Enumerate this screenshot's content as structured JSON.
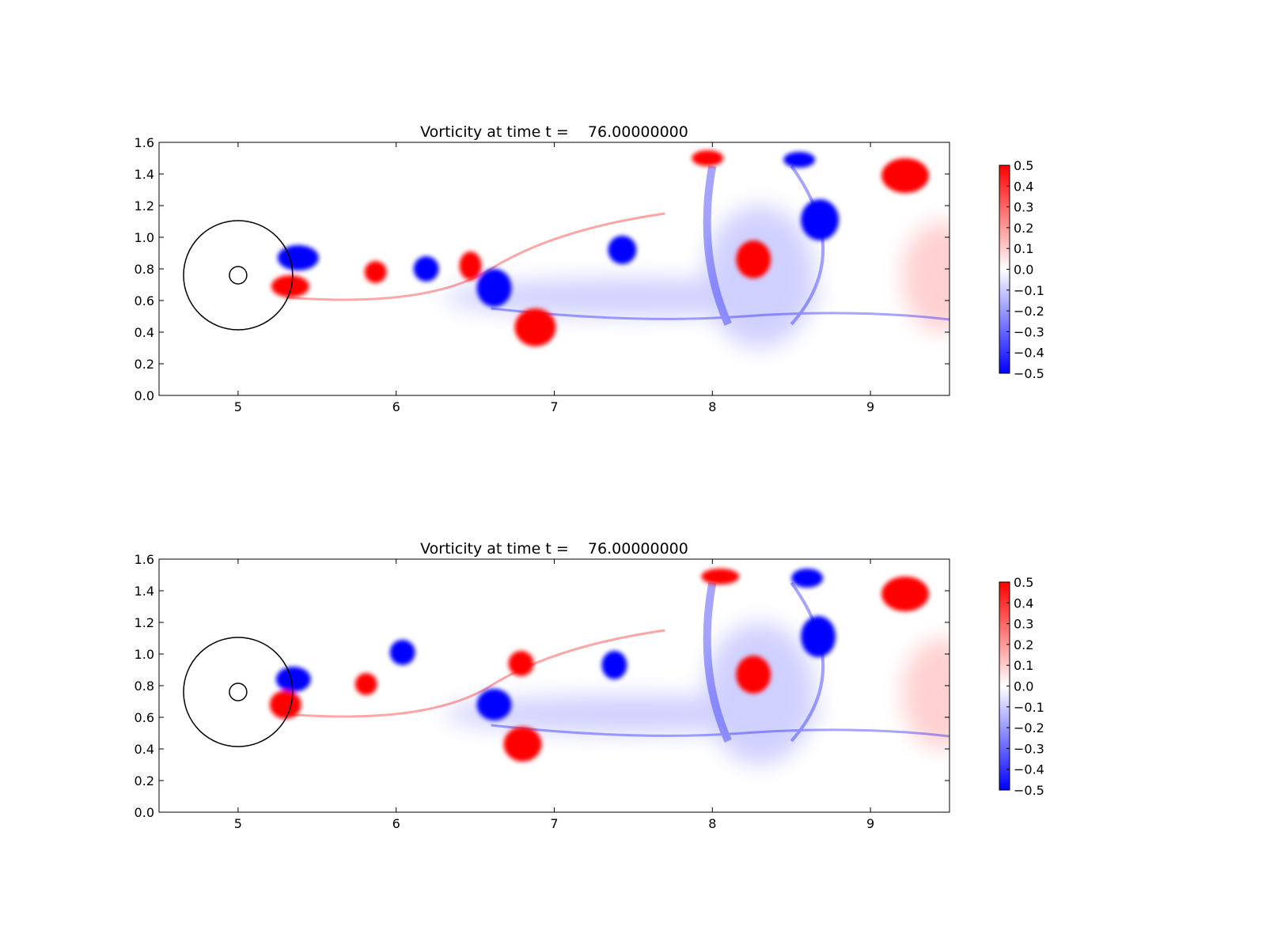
{
  "chart_data": [
    {
      "type": "heatmap",
      "title": "Vorticity at time t =    76.00000000",
      "xlabel": "",
      "ylabel": "",
      "xlim": [
        4.5,
        9.5
      ],
      "ylim": [
        0.0,
        1.6
      ],
      "x_ticks": [
        "5",
        "6",
        "7",
        "8",
        "9"
      ],
      "x_tick_values": [
        5,
        6,
        7,
        8,
        9
      ],
      "y_ticks": [
        "0.0",
        "0.2",
        "0.4",
        "0.6",
        "0.8",
        "1.0",
        "1.2",
        "1.4",
        "1.6"
      ],
      "y_tick_values": [
        0.0,
        0.2,
        0.4,
        0.6,
        0.8,
        1.0,
        1.2,
        1.4,
        1.6
      ],
      "colorbar": {
        "min": -0.5,
        "max": 0.5,
        "ticks": [
          "0.5",
          "0.4",
          "0.3",
          "0.2",
          "0.1",
          "0.0",
          "−0.1",
          "−0.2",
          "−0.3",
          "−0.4",
          "−0.5"
        ],
        "tick_values": [
          0.5,
          0.4,
          0.3,
          0.2,
          0.1,
          0.0,
          -0.1,
          -0.2,
          -0.3,
          -0.4,
          -0.5
        ],
        "colormap": [
          "#0000ff",
          "#ffffff",
          "#ff0000"
        ]
      },
      "grid": false,
      "overlay_circles": [
        {
          "cx": 5.0,
          "cy": 0.76,
          "r": 0.345
        },
        {
          "cx": 5.0,
          "cy": 0.76,
          "r": 0.055
        }
      ],
      "vortices": [
        {
          "x": 5.38,
          "y": 0.87,
          "rx": 0.13,
          "ry": 0.08,
          "value": -0.5
        },
        {
          "x": 5.33,
          "y": 0.69,
          "rx": 0.12,
          "ry": 0.07,
          "value": 0.5
        },
        {
          "x": 5.87,
          "y": 0.78,
          "rx": 0.07,
          "ry": 0.07,
          "value": 0.5
        },
        {
          "x": 6.19,
          "y": 0.8,
          "rx": 0.08,
          "ry": 0.08,
          "value": -0.5
        },
        {
          "x": 6.47,
          "y": 0.82,
          "rx": 0.07,
          "ry": 0.09,
          "value": 0.5
        },
        {
          "x": 6.62,
          "y": 0.68,
          "rx": 0.11,
          "ry": 0.12,
          "value": -0.5
        },
        {
          "x": 6.88,
          "y": 0.43,
          "rx": 0.13,
          "ry": 0.12,
          "value": 0.5
        },
        {
          "x": 7.43,
          "y": 0.92,
          "rx": 0.09,
          "ry": 0.09,
          "value": -0.5
        },
        {
          "x": 8.26,
          "y": 0.86,
          "rx": 0.11,
          "ry": 0.12,
          "value": 0.5
        },
        {
          "x": 8.68,
          "y": 1.11,
          "rx": 0.12,
          "ry": 0.13,
          "value": -0.5
        },
        {
          "x": 9.22,
          "y": 1.39,
          "rx": 0.15,
          "ry": 0.11,
          "value": 0.5
        },
        {
          "x": 7.97,
          "y": 1.5,
          "rx": 0.1,
          "ry": 0.05,
          "value": 0.5
        },
        {
          "x": 8.55,
          "y": 1.49,
          "rx": 0.1,
          "ry": 0.05,
          "value": -0.5
        }
      ]
    },
    {
      "type": "heatmap",
      "title": "Vorticity at time t =    76.00000000",
      "xlabel": "",
      "ylabel": "",
      "xlim": [
        4.5,
        9.5
      ],
      "ylim": [
        0.0,
        1.6
      ],
      "x_ticks": [
        "5",
        "6",
        "7",
        "8",
        "9"
      ],
      "x_tick_values": [
        5,
        6,
        7,
        8,
        9
      ],
      "y_ticks": [
        "0.0",
        "0.2",
        "0.4",
        "0.6",
        "0.8",
        "1.0",
        "1.2",
        "1.4",
        "1.6"
      ],
      "y_tick_values": [
        0.0,
        0.2,
        0.4,
        0.6,
        0.8,
        1.0,
        1.2,
        1.4,
        1.6
      ],
      "colorbar": {
        "min": -0.5,
        "max": 0.5,
        "ticks": [
          "0.5",
          "0.4",
          "0.3",
          "0.2",
          "0.1",
          "0.0",
          "−0.1",
          "−0.2",
          "−0.3",
          "−0.4",
          "−0.5"
        ],
        "tick_values": [
          0.5,
          0.4,
          0.3,
          0.2,
          0.1,
          0.0,
          -0.1,
          -0.2,
          -0.3,
          -0.4,
          -0.5
        ],
        "colormap": [
          "#0000ff",
          "#ffffff",
          "#ff0000"
        ]
      },
      "grid": false,
      "overlay_circles": [
        {
          "cx": 5.0,
          "cy": 0.76,
          "r": 0.345
        },
        {
          "cx": 5.0,
          "cy": 0.76,
          "r": 0.055
        }
      ],
      "vortices": [
        {
          "x": 5.35,
          "y": 0.84,
          "rx": 0.11,
          "ry": 0.08,
          "value": -0.5
        },
        {
          "x": 5.3,
          "y": 0.68,
          "rx": 0.1,
          "ry": 0.09,
          "value": 0.5
        },
        {
          "x": 5.81,
          "y": 0.81,
          "rx": 0.07,
          "ry": 0.07,
          "value": 0.5
        },
        {
          "x": 6.04,
          "y": 1.01,
          "rx": 0.08,
          "ry": 0.08,
          "value": -0.5
        },
        {
          "x": 6.79,
          "y": 0.94,
          "rx": 0.08,
          "ry": 0.08,
          "value": 0.5
        },
        {
          "x": 6.62,
          "y": 0.68,
          "rx": 0.11,
          "ry": 0.1,
          "value": -0.5
        },
        {
          "x": 6.8,
          "y": 0.43,
          "rx": 0.12,
          "ry": 0.11,
          "value": 0.5
        },
        {
          "x": 7.38,
          "y": 0.93,
          "rx": 0.08,
          "ry": 0.09,
          "value": -0.5
        },
        {
          "x": 8.26,
          "y": 0.87,
          "rx": 0.11,
          "ry": 0.12,
          "value": 0.5
        },
        {
          "x": 8.67,
          "y": 1.11,
          "rx": 0.11,
          "ry": 0.13,
          "value": -0.5
        },
        {
          "x": 9.22,
          "y": 1.38,
          "rx": 0.15,
          "ry": 0.11,
          "value": 0.5
        },
        {
          "x": 8.05,
          "y": 1.49,
          "rx": 0.12,
          "ry": 0.05,
          "value": 0.5
        },
        {
          "x": 8.6,
          "y": 1.48,
          "rx": 0.1,
          "ry": 0.06,
          "value": -0.5
        }
      ]
    }
  ]
}
